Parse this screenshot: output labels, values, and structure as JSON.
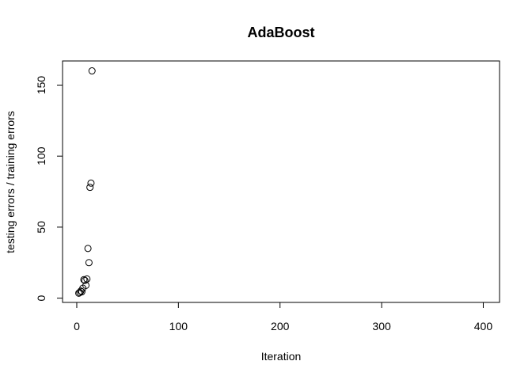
{
  "chart_data": {
    "type": "scatter",
    "title": "AdaBoost",
    "xlabel": "Iteration",
    "ylabel": "testing errors / training errors",
    "xlim": [
      -14,
      416
    ],
    "ylim": [
      -3,
      167
    ],
    "x_ticks": [
      0,
      100,
      200,
      300,
      400
    ],
    "y_ticks": [
      0,
      50,
      100,
      150
    ],
    "grid": false,
    "marker": "open-circle",
    "x": [
      2,
      3,
      4,
      5,
      6,
      7,
      8,
      9,
      10,
      11,
      12,
      13,
      14,
      15
    ],
    "y": [
      3.5,
      4,
      5,
      4.5,
      7,
      13,
      12.5,
      9,
      13.5,
      35,
      25,
      78,
      81,
      160
    ]
  }
}
